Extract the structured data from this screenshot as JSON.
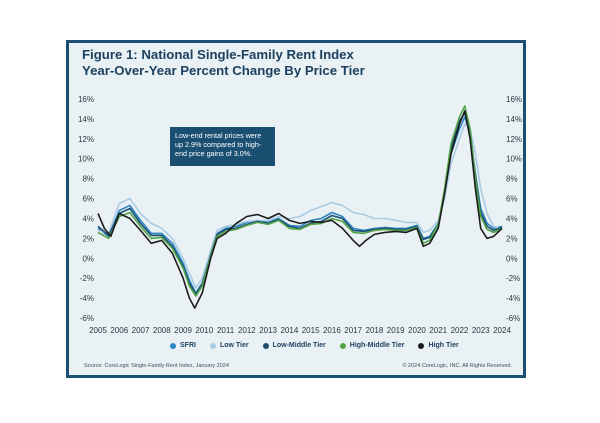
{
  "title_line1": "Figure 1: National Single-Family Rent Index",
  "title_line2": "Year-Over-Year Percent Change By Price Tier",
  "callout": "Low-end rental prices were up 2.9% compared to high-end price gains of 3.0%.",
  "source": "Source: CoreLogic Single-Family Rent Index, January 2024",
  "copyright": "© 2024 CoreLogic, INC. All Rights Reserved.",
  "chart_data": {
    "type": "line",
    "title": "Figure 1: National Single-Family Rent Index Year-Over-Year Percent Change By Price Tier",
    "x_ticks": [
      "2005",
      "2006",
      "2007",
      "2008",
      "2009",
      "2010",
      "2011",
      "2012",
      "2013",
      "2014",
      "2015",
      "2016",
      "2017",
      "2018",
      "2019",
      "2020",
      "2021",
      "2022",
      "2023",
      "2024"
    ],
    "y_ticks": [
      "16%",
      "14%",
      "12%",
      "10%",
      "8%",
      "6%",
      "4%",
      "2%",
      "0%",
      "-2%",
      "-4%",
      "-6%"
    ],
    "ylim": [
      -6,
      16
    ],
    "xlim": [
      2005,
      2024
    ],
    "grid": false,
    "legend_position": "bottom",
    "series": [
      {
        "name": "SFRI",
        "color": "#2e86c1",
        "points": [
          [
            2005,
            3.0
          ],
          [
            2005.5,
            2.2
          ],
          [
            2006,
            4.8
          ],
          [
            2006.5,
            5.3
          ],
          [
            2007,
            3.8
          ],
          [
            2007.5,
            2.5
          ],
          [
            2008,
            2.5
          ],
          [
            2008.5,
            1.5
          ],
          [
            2009,
            -0.5
          ],
          [
            2009.3,
            -2.2
          ],
          [
            2009.6,
            -3.5
          ],
          [
            2009.9,
            -2.5
          ],
          [
            2010.3,
            0.5
          ],
          [
            2010.6,
            2.5
          ],
          [
            2011,
            3.0
          ],
          [
            2011.5,
            3.2
          ],
          [
            2012,
            3.6
          ],
          [
            2012.5,
            3.8
          ],
          [
            2013,
            3.6
          ],
          [
            2013.5,
            4.0
          ],
          [
            2014,
            3.3
          ],
          [
            2014.5,
            3.2
          ],
          [
            2015,
            3.8
          ],
          [
            2015.5,
            4.0
          ],
          [
            2016,
            4.6
          ],
          [
            2016.5,
            4.2
          ],
          [
            2017,
            3.0
          ],
          [
            2017.5,
            2.8
          ],
          [
            2018,
            3.0
          ],
          [
            2018.5,
            3.1
          ],
          [
            2019,
            3.0
          ],
          [
            2019.5,
            3.0
          ],
          [
            2020,
            3.3
          ],
          [
            2020.3,
            2.0
          ],
          [
            2020.6,
            2.2
          ],
          [
            2021,
            3.5
          ],
          [
            2021.3,
            6.5
          ],
          [
            2021.6,
            10.5
          ],
          [
            2022,
            13.0
          ],
          [
            2022.25,
            14.2
          ],
          [
            2022.5,
            12.5
          ],
          [
            2022.75,
            8.5
          ],
          [
            2023,
            5.0
          ],
          [
            2023.3,
            3.5
          ],
          [
            2023.6,
            3.0
          ],
          [
            2024,
            3.2
          ]
        ]
      },
      {
        "name": "Low Tier",
        "color": "#a9cce3",
        "points": [
          [
            2005,
            2.8
          ],
          [
            2005.5,
            2.5
          ],
          [
            2006,
            5.5
          ],
          [
            2006.5,
            6.0
          ],
          [
            2007,
            4.5
          ],
          [
            2007.5,
            3.5
          ],
          [
            2008,
            3.0
          ],
          [
            2008.5,
            2.0
          ],
          [
            2009,
            0.0
          ],
          [
            2009.3,
            -1.5
          ],
          [
            2009.6,
            -3.0
          ],
          [
            2009.9,
            -2.0
          ],
          [
            2010.3,
            0.8
          ],
          [
            2010.6,
            2.8
          ],
          [
            2011,
            3.2
          ],
          [
            2011.5,
            3.4
          ],
          [
            2012,
            3.7
          ],
          [
            2012.5,
            3.8
          ],
          [
            2013,
            3.8
          ],
          [
            2013.5,
            4.2
          ],
          [
            2014,
            4.0
          ],
          [
            2014.5,
            4.2
          ],
          [
            2015,
            4.8
          ],
          [
            2015.5,
            5.2
          ],
          [
            2016,
            5.6
          ],
          [
            2016.5,
            5.3
          ],
          [
            2017,
            4.6
          ],
          [
            2017.5,
            4.4
          ],
          [
            2018,
            4.0
          ],
          [
            2018.5,
            4.0
          ],
          [
            2019,
            3.8
          ],
          [
            2019.5,
            3.6
          ],
          [
            2020,
            3.6
          ],
          [
            2020.3,
            2.6
          ],
          [
            2020.6,
            2.8
          ],
          [
            2021,
            3.8
          ],
          [
            2021.3,
            6.0
          ],
          [
            2021.6,
            9.5
          ],
          [
            2022,
            12.0
          ],
          [
            2022.25,
            13.5
          ],
          [
            2022.5,
            13.0
          ],
          [
            2022.75,
            10.5
          ],
          [
            2023,
            7.0
          ],
          [
            2023.3,
            4.5
          ],
          [
            2023.6,
            3.2
          ],
          [
            2024,
            2.9
          ]
        ]
      },
      {
        "name": "Low-Middle Tier",
        "color": "#1b4f72",
        "points": [
          [
            2005,
            3.2
          ],
          [
            2005.5,
            2.3
          ],
          [
            2006,
            4.5
          ],
          [
            2006.5,
            5.0
          ],
          [
            2007,
            3.5
          ],
          [
            2007.5,
            2.3
          ],
          [
            2008,
            2.3
          ],
          [
            2008.5,
            1.2
          ],
          [
            2009,
            -0.8
          ],
          [
            2009.3,
            -2.5
          ],
          [
            2009.6,
            -3.6
          ],
          [
            2009.9,
            -2.6
          ],
          [
            2010.3,
            0.3
          ],
          [
            2010.6,
            2.4
          ],
          [
            2011,
            2.9
          ],
          [
            2011.5,
            3.0
          ],
          [
            2012,
            3.4
          ],
          [
            2012.5,
            3.7
          ],
          [
            2013,
            3.5
          ],
          [
            2013.5,
            3.9
          ],
          [
            2014,
            3.2
          ],
          [
            2014.5,
            3.0
          ],
          [
            2015,
            3.5
          ],
          [
            2015.5,
            3.7
          ],
          [
            2016,
            4.3
          ],
          [
            2016.5,
            4.0
          ],
          [
            2017,
            2.8
          ],
          [
            2017.5,
            2.7
          ],
          [
            2018,
            2.9
          ],
          [
            2018.5,
            3.0
          ],
          [
            2019,
            2.9
          ],
          [
            2019.5,
            2.9
          ],
          [
            2020,
            3.2
          ],
          [
            2020.3,
            1.9
          ],
          [
            2020.6,
            2.1
          ],
          [
            2021,
            3.3
          ],
          [
            2021.3,
            6.8
          ],
          [
            2021.6,
            11.0
          ],
          [
            2022,
            13.8
          ],
          [
            2022.25,
            14.6
          ],
          [
            2022.5,
            12.8
          ],
          [
            2022.75,
            8.2
          ],
          [
            2023,
            4.6
          ],
          [
            2023.3,
            3.2
          ],
          [
            2023.6,
            2.8
          ],
          [
            2024,
            3.1
          ]
        ]
      },
      {
        "name": "High-Middle Tier",
        "color": "#52a447",
        "points": [
          [
            2005,
            2.6
          ],
          [
            2005.5,
            2.0
          ],
          [
            2006,
            4.2
          ],
          [
            2006.5,
            4.6
          ],
          [
            2007,
            3.2
          ],
          [
            2007.5,
            2.0
          ],
          [
            2008,
            2.1
          ],
          [
            2008.5,
            1.0
          ],
          [
            2009,
            -1.0
          ],
          [
            2009.3,
            -2.8
          ],
          [
            2009.6,
            -3.8
          ],
          [
            2009.9,
            -2.8
          ],
          [
            2010.3,
            0.2
          ],
          [
            2010.6,
            2.2
          ],
          [
            2011,
            2.7
          ],
          [
            2011.5,
            2.9
          ],
          [
            2012,
            3.3
          ],
          [
            2012.5,
            3.6
          ],
          [
            2013,
            3.4
          ],
          [
            2013.5,
            3.8
          ],
          [
            2014,
            3.0
          ],
          [
            2014.5,
            2.9
          ],
          [
            2015,
            3.4
          ],
          [
            2015.5,
            3.5
          ],
          [
            2016,
            4.0
          ],
          [
            2016.5,
            3.7
          ],
          [
            2017,
            2.6
          ],
          [
            2017.5,
            2.5
          ],
          [
            2018,
            2.8
          ],
          [
            2018.5,
            2.9
          ],
          [
            2019,
            2.8
          ],
          [
            2019.5,
            2.8
          ],
          [
            2020,
            3.1
          ],
          [
            2020.3,
            1.5
          ],
          [
            2020.6,
            1.8
          ],
          [
            2021,
            3.4
          ],
          [
            2021.3,
            7.0
          ],
          [
            2021.6,
            11.5
          ],
          [
            2022,
            14.2
          ],
          [
            2022.25,
            15.3
          ],
          [
            2022.5,
            13.0
          ],
          [
            2022.75,
            8.0
          ],
          [
            2023,
            4.2
          ],
          [
            2023.3,
            2.9
          ],
          [
            2023.6,
            2.6
          ],
          [
            2024,
            3.0
          ]
        ]
      },
      {
        "name": "High Tier",
        "color": "#1c1c1c",
        "points": [
          [
            2005,
            4.5
          ],
          [
            2005.3,
            3.0
          ],
          [
            2005.6,
            2.2
          ],
          [
            2006,
            4.5
          ],
          [
            2006.5,
            4.0
          ],
          [
            2007,
            2.8
          ],
          [
            2007.5,
            1.5
          ],
          [
            2008,
            1.8
          ],
          [
            2008.5,
            0.5
          ],
          [
            2009,
            -2.0
          ],
          [
            2009.3,
            -4.0
          ],
          [
            2009.55,
            -5.0
          ],
          [
            2009.9,
            -3.5
          ],
          [
            2010.3,
            0.0
          ],
          [
            2010.6,
            2.0
          ],
          [
            2011,
            2.5
          ],
          [
            2011.5,
            3.5
          ],
          [
            2012,
            4.2
          ],
          [
            2012.5,
            4.4
          ],
          [
            2013,
            4.0
          ],
          [
            2013.5,
            4.5
          ],
          [
            2014,
            3.8
          ],
          [
            2014.5,
            3.5
          ],
          [
            2015,
            3.7
          ],
          [
            2015.5,
            3.6
          ],
          [
            2016,
            3.8
          ],
          [
            2016.5,
            3.0
          ],
          [
            2017,
            1.8
          ],
          [
            2017.3,
            1.2
          ],
          [
            2017.6,
            1.8
          ],
          [
            2018,
            2.4
          ],
          [
            2018.5,
            2.6
          ],
          [
            2019,
            2.7
          ],
          [
            2019.5,
            2.6
          ],
          [
            2020,
            3.0
          ],
          [
            2020.3,
            1.2
          ],
          [
            2020.6,
            1.5
          ],
          [
            2021,
            3.0
          ],
          [
            2021.3,
            6.5
          ],
          [
            2021.6,
            10.5
          ],
          [
            2022,
            13.5
          ],
          [
            2022.25,
            14.8
          ],
          [
            2022.5,
            12.0
          ],
          [
            2022.75,
            7.0
          ],
          [
            2023,
            3.0
          ],
          [
            2023.3,
            2.0
          ],
          [
            2023.6,
            2.2
          ],
          [
            2024,
            3.0
          ]
        ]
      }
    ]
  }
}
